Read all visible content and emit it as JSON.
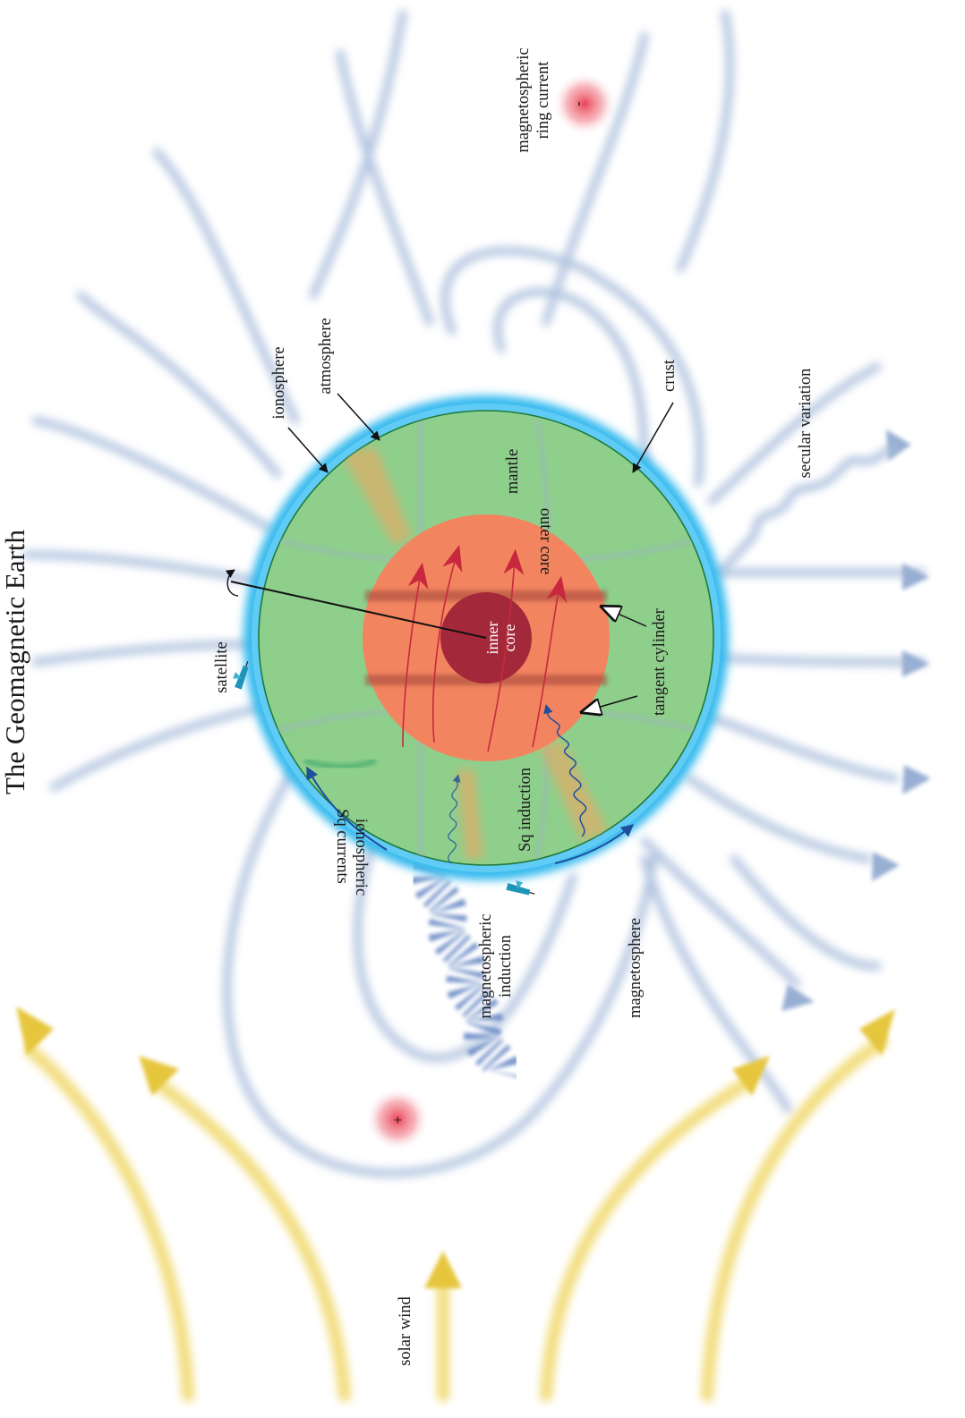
{
  "title": "The Geomagnetic Earth",
  "labels": {
    "ionosphere": "ionosphere",
    "atmosphere": "atmosphere",
    "crust": "crust",
    "mantle": "mantle",
    "outer_core": "outer core",
    "inner_core_line1": "inner",
    "inner_core_line2": "core",
    "tangent_cylinder": "tangent cylinder",
    "satellite": "satellite",
    "secular_variation": "secular variation",
    "ring_current_line1": "magnetospheric",
    "ring_current_line2": "ring current",
    "ring_current_minus": "-",
    "ring_current_plus": "+",
    "ionospheric_line1": "ionospheric",
    "ionospheric_line2": "Sq currents",
    "sq_induction": "Sq induction",
    "magnetospheric_induction_line1": "magnetospheric",
    "magnetospheric_induction_line2": "induction",
    "magnetosphere": "magnetosphere",
    "solar_wind": "solar wind"
  },
  "colors": {
    "mantle": "#8fcf8c",
    "outer_core": "#f2855f",
    "inner_core": "#a3293a",
    "ionosphere_glow": "#35b9ee",
    "field_lines": "#a9bddc",
    "solar_wind": "#ecd05a",
    "core_flow": "#c8283e",
    "induction_wave": "#1f4e9c"
  }
}
